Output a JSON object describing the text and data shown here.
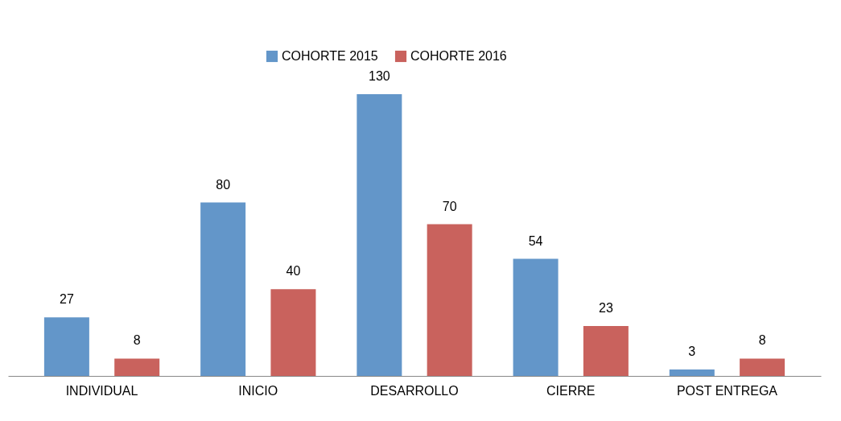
{
  "chart_data": {
    "type": "bar",
    "categories": [
      "INDIVIDUAL",
      "INICIO",
      "DESARROLLO",
      "CIERRE",
      "POST ENTREGA"
    ],
    "series": [
      {
        "name": "COHORTE 2015",
        "color": "#6396c9",
        "values": [
          27,
          80,
          130,
          54,
          3
        ]
      },
      {
        "name": "COHORTE 2016",
        "color": "#c9625d",
        "values": [
          8,
          40,
          70,
          23,
          8
        ]
      }
    ],
    "data_labels": true,
    "legend": "top"
  }
}
